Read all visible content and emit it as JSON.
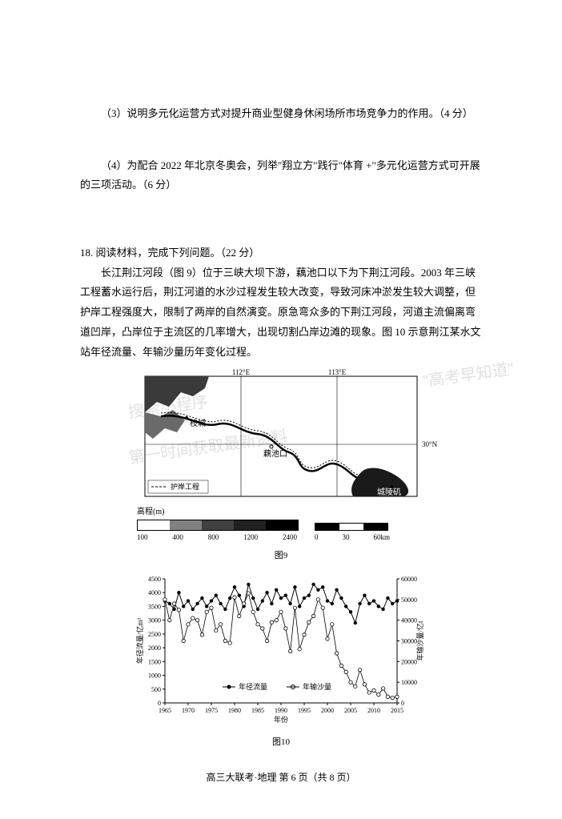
{
  "q3": "（3）说明多元化运营方式对提升商业型健身休闲场所市场竞争力的作用。（4 分）",
  "q4": "（4）为配合 2022 年北京冬奥会，列举\"翔立方\"践行\"体育 +\"多元化运营方式可开展的三项活动。（6 分）",
  "q18": {
    "head": "18. 阅读材料，完成下列问题。（22 分）",
    "body": "长江荆江河段（图 9）位于三峡大坝下游，藕池口以下为下荆江河段。2003 年三峡工程蓄水运行后，荆江河道的水沙过程发生较大改变，导致河床冲淤发生较大调整，但护岸工程强度大，限制了两岸的自然演变。原急弯众多的下荆江河段，河道主流偏离弯道凹岸，凸岸位于主流区的几率增大，出现切割凸岸边滩的现象。图 10 示意荆江某水文站年径流量、年输沙量历年变化过程。"
  },
  "map": {
    "lon_labels": [
      "112°E",
      "113°E"
    ],
    "lat_label": "30°N",
    "cities": {
      "zhicheng": "枝城",
      "ouchi": "藕池口",
      "chenglingji": "城陵矶"
    },
    "legend_line": "护岸工程",
    "elev_title": "高程(m)",
    "elev_ticks": [
      "100",
      "400",
      "800",
      "1200",
      "2400"
    ],
    "elev_colors": [
      "#ffffff",
      "#808080",
      "#404040",
      "#202020",
      "#000000"
    ],
    "scale_ticks": [
      "0",
      "30",
      "60km"
    ],
    "scale_colors": [
      "#000000",
      "#ffffff",
      "#000000"
    ],
    "caption": "图9"
  },
  "chart": {
    "type": "line",
    "x_ticks": [
      "1965",
      "1970",
      "1975",
      "1980",
      "1985",
      "1990",
      "1995",
      "2000",
      "2005",
      "2010",
      "2015"
    ],
    "y1_ticks": [
      0,
      500,
      1000,
      1500,
      2000,
      2500,
      3000,
      3500,
      4000,
      4500
    ],
    "y2_ticks": [
      0,
      10000,
      20000,
      30000,
      40000,
      50000,
      60000
    ],
    "y1_label": "年径流量/亿m³",
    "y2_label": "年输沙量/亿t",
    "x_label": "年份",
    "legend": {
      "flow": "年径流量",
      "sand": "年输沙量"
    },
    "caption": "图10",
    "flow_color": "#000000",
    "sand_color": "#000000",
    "grid_color": "#000000",
    "background": "#ffffff",
    "y1_range": [
      0,
      4500
    ],
    "y2_range": [
      0,
      60000
    ],
    "flow_marker": "solid_circle",
    "sand_marker": "hollow_circle",
    "flow": [
      3700,
      3600,
      3400,
      4000,
      3500,
      3700,
      3400,
      3600,
      3800,
      3500,
      3700,
      3900,
      3600,
      3400,
      3800,
      4200,
      3900,
      3500,
      4300,
      3800,
      3400,
      3700,
      4000,
      3600,
      4100,
      3800,
      3900,
      3600,
      4200,
      3500,
      3800,
      3900,
      4300,
      4100,
      4200,
      3700,
      3600,
      4100,
      3800,
      3500,
      3300,
      2900,
      3600,
      3900,
      3600,
      3700,
      3500,
      3400,
      3800,
      3600,
      3700
    ],
    "sand": [
      50000,
      40000,
      48000,
      45000,
      30000,
      38000,
      41000,
      40000,
      33000,
      44000,
      46000,
      35000,
      38000,
      30000,
      29000,
      51000,
      42000,
      48000,
      53000,
      44000,
      38000,
      36000,
      30000,
      39000,
      40000,
      44000,
      36000,
      25000,
      46000,
      26000,
      33000,
      39000,
      42000,
      50000,
      46000,
      31000,
      38000,
      24000,
      18000,
      15000,
      10000,
      8000,
      16000,
      9000,
      5000,
      6000,
      4000,
      7000,
      3000,
      2500,
      3000
    ]
  },
  "footer": "高三大联考·地理 第 6 页（共 8 页）",
  "watermarks": {
    "line1": "\"高考早知道\"",
    "line2": "搜索小程序",
    "line3": "第一时间获取最新资料"
  }
}
